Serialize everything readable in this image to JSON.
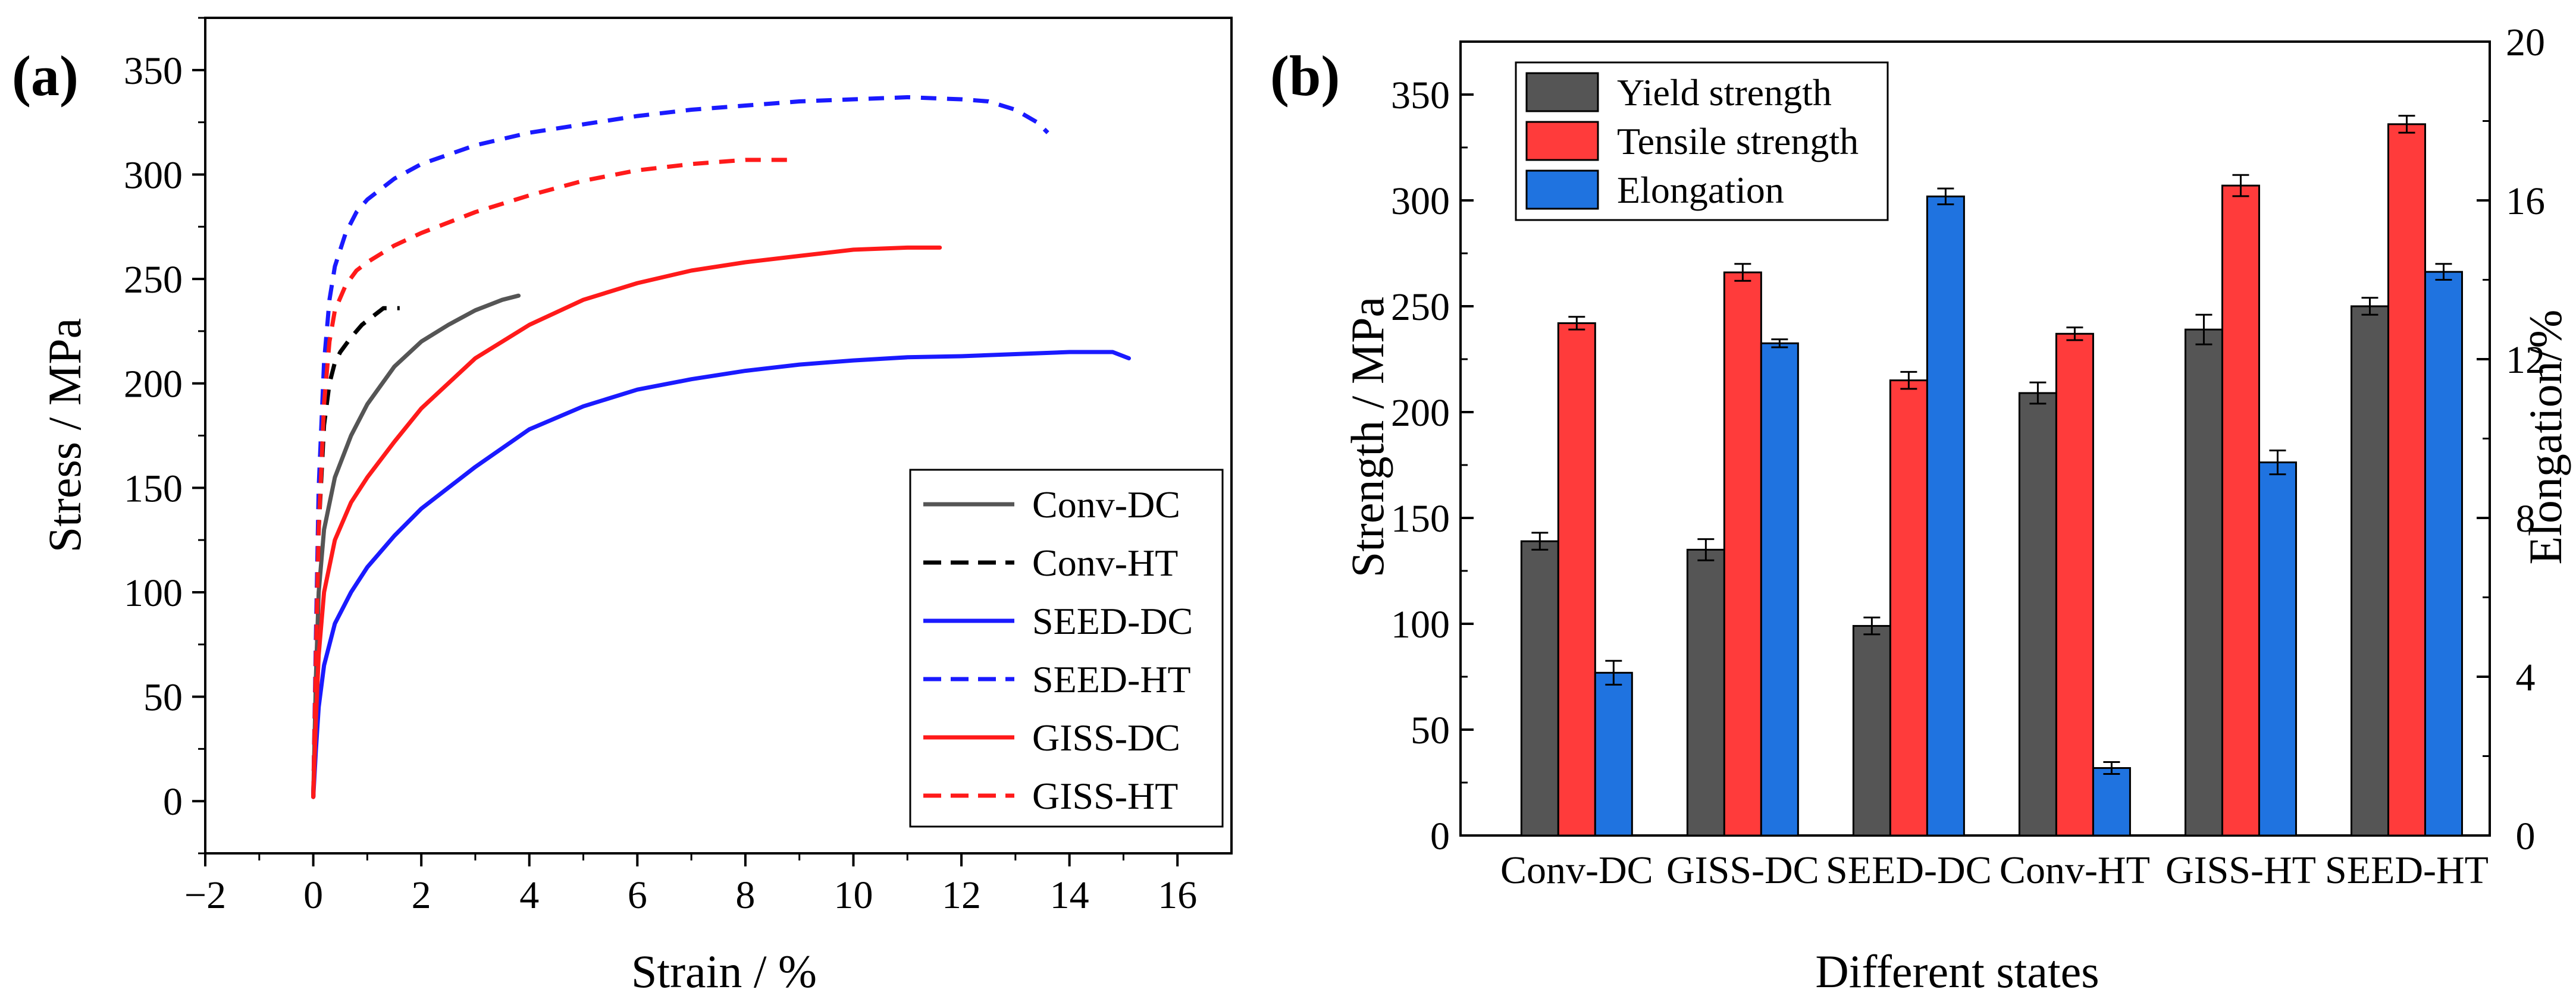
{
  "chart_data": [
    {
      "panel_label": "(a)",
      "type": "line",
      "xlabel": "Strain / %",
      "ylabel": "Stress / MPa",
      "xlim": [
        -2,
        17
      ],
      "ylim": [
        -25,
        375
      ],
      "xticks": [
        -2,
        0,
        2,
        4,
        6,
        8,
        10,
        12,
        14,
        16
      ],
      "yticks": [
        0,
        50,
        100,
        150,
        200,
        250,
        300,
        350
      ],
      "legend_position": "lower-right",
      "series": [
        {
          "name": "Conv-DC",
          "color": "#555555",
          "dash": "solid",
          "x": [
            0,
            0.05,
            0.1,
            0.2,
            0.4,
            0.7,
            1.0,
            1.5,
            2.0,
            2.5,
            3.0,
            3.5,
            3.8
          ],
          "y": [
            2,
            60,
            100,
            130,
            155,
            175,
            190,
            208,
            220,
            228,
            235,
            240,
            242
          ]
        },
        {
          "name": "Conv-HT",
          "color": "#000000",
          "dash": "dashed",
          "x": [
            0,
            0.05,
            0.1,
            0.2,
            0.3,
            0.4,
            0.5,
            0.7,
            0.9,
            1.1,
            1.3,
            1.6
          ],
          "y": [
            2,
            70,
            130,
            180,
            200,
            210,
            215,
            222,
            228,
            232,
            236,
            236
          ]
        },
        {
          "name": "SEED-DC",
          "color": "#1a1aff",
          "dash": "solid",
          "x": [
            0,
            0.05,
            0.1,
            0.2,
            0.4,
            0.7,
            1,
            1.5,
            2,
            3,
            4,
            5,
            6,
            7,
            8,
            9,
            10,
            11,
            12,
            13,
            14,
            14.8,
            15.1
          ],
          "y": [
            2,
            25,
            45,
            65,
            85,
            100,
            112,
            127,
            140,
            160,
            178,
            189,
            197,
            202,
            206,
            209,
            211,
            212.5,
            213,
            214,
            215,
            215,
            212
          ]
        },
        {
          "name": "SEED-HT",
          "color": "#1a1aff",
          "dash": "dashed",
          "x": [
            0,
            0.05,
            0.1,
            0.2,
            0.3,
            0.4,
            0.6,
            0.8,
            1.0,
            1.5,
            2,
            3,
            4,
            5,
            6,
            7,
            8,
            9,
            10,
            11,
            12,
            12.5,
            13,
            13.4,
            13.6
          ],
          "y": [
            2,
            80,
            150,
            210,
            240,
            256,
            272,
            282,
            288,
            298,
            305,
            314,
            320,
            324,
            328,
            331,
            333,
            335,
            336,
            337,
            336,
            335,
            331,
            325,
            320
          ]
        },
        {
          "name": "GISS-DC",
          "color": "#ff1a1a",
          "dash": "solid",
          "x": [
            0,
            0.05,
            0.1,
            0.2,
            0.4,
            0.7,
            1,
            1.5,
            2,
            3,
            4,
            5,
            6,
            7,
            8,
            9,
            10,
            11,
            11.6
          ],
          "y": [
            2,
            40,
            70,
            100,
            125,
            143,
            155,
            172,
            188,
            212,
            228,
            240,
            248,
            254,
            258,
            261,
            264,
            265,
            265
          ]
        },
        {
          "name": "GISS-HT",
          "color": "#ff1a1a",
          "dash": "dashed",
          "x": [
            0,
            0.05,
            0.1,
            0.2,
            0.3,
            0.4,
            0.6,
            0.8,
            1,
            1.5,
            2,
            3,
            4,
            5,
            6,
            7,
            8,
            8.8
          ],
          "y": [
            2,
            70,
            130,
            190,
            220,
            235,
            247,
            254,
            258,
            266,
            272,
            282,
            290,
            297,
            302,
            305,
            307,
            307
          ]
        }
      ]
    },
    {
      "panel_label": "(b)",
      "type": "bar",
      "xlabel": "Different states",
      "ylabel": "Strength / MPa",
      "ylabel_right": "Elongation/%",
      "categories": [
        "Conv-DC",
        "GISS-DC",
        "SEED-DC",
        "Conv-HT",
        "GISS-HT",
        "SEED-HT"
      ],
      "ylim": [
        0,
        375
      ],
      "yticks": [
        0,
        50,
        100,
        150,
        200,
        250,
        300,
        350
      ],
      "ylim_right": [
        0,
        20
      ],
      "yticks_right": [
        0,
        4,
        8,
        12,
        16,
        20
      ],
      "legend_position": "top-left",
      "series": [
        {
          "name": "Yield strength",
          "color": "#555555",
          "axis": "left",
          "values": [
            139,
            135,
            99,
            209,
            239,
            250
          ],
          "errors": [
            4,
            5,
            4,
            5,
            7,
            4
          ]
        },
        {
          "name": "Tensile strength",
          "color": "#ff3b3b",
          "axis": "left",
          "values": [
            242,
            266,
            215,
            237,
            307,
            336
          ],
          "errors": [
            3,
            4,
            4,
            3,
            5,
            4
          ]
        },
        {
          "name": "Elongation",
          "color": "#1f73e0",
          "axis": "right",
          "values": [
            4.1,
            12.4,
            16.1,
            1.7,
            9.4,
            14.2
          ],
          "errors": [
            0.3,
            0.1,
            0.2,
            0.15,
            0.3,
            0.2
          ]
        }
      ]
    }
  ]
}
